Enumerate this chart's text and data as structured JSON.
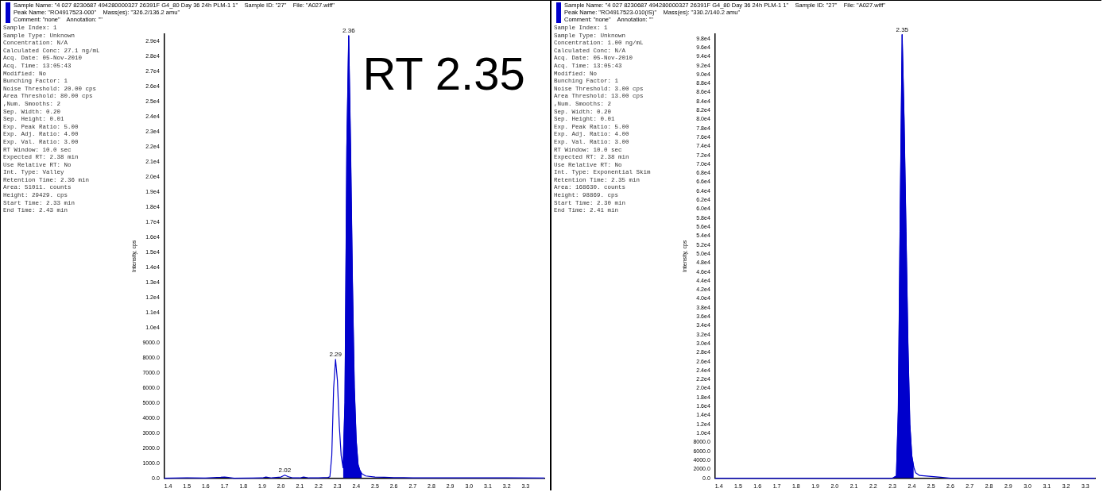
{
  "chart_data": [
    {
      "type": "line",
      "title": "Sample Name: \"4 027 8230687 494280000327 26391F G4_80 Day 36 24h PLM-1 1\"    Sample ID: \"27\"    File: \"A027.wiff\"",
      "subtitle": "Peak Name: \"RO4917523-000\"    Mass(es): \"326.2/136.2 amu\"",
      "ylabel": "Intensity, cps",
      "annotations": [
        "Comment: \"none\"    Annotation: \"\"",
        "Sample Index: 1",
        "Sample Type: Unknown",
        "Concentration: N/A",
        "Calculated Conc: 27.1 ng/mL",
        "Acq. Date: 05-Nov-2010",
        "Acq. Time: 13:05:43",
        "Modified: No",
        "Bunching Factor: 1",
        "Noise Threshold: 20.00 cps",
        "Area Threshold: 80.00 cps",
        ",Num. Smooths: 2",
        "Sep. Width: 0.20",
        "Sep. Height: 0.01",
        "Exp. Peak Ratio: 5.00",
        "Exp. Adj. Ratio: 4.00",
        "Exp. Val. Ratio: 3.00",
        "RT Window: 10.0 sec",
        "Expected RT: 2.38 min",
        "Use Relative RT: No",
        "Int. Type: Valley",
        "Retention Time: 2.36 min",
        "Area: 51011. counts",
        "Height: 29429. cps",
        "Start Time: 2.33 min",
        "End Time: 2.43 min",
        {
          "text": "2.36",
          "x": 2.36,
          "y": 29400
        },
        {
          "text": "2.29",
          "x": 2.29,
          "y": 7900
        },
        {
          "text": "2.02",
          "x": 2.02,
          "y": 200
        },
        {
          "text": "RT 2.35",
          "x": 2.35
        }
      ],
      "series": [
        {
          "type": "line",
          "color": "#0000cc",
          "x": [
            1.38,
            1.5,
            1.6,
            1.68,
            1.7,
            1.72,
            1.75,
            1.85,
            1.9,
            1.92,
            1.95,
            2.0,
            2.02,
            2.04,
            2.06,
            2.1,
            2.12,
            2.15,
            2.2,
            2.25,
            2.26,
            2.27,
            2.28,
            2.29,
            2.3,
            2.31,
            2.32,
            2.33,
            2.34,
            2.35,
            2.36,
            2.37,
            2.38,
            2.39,
            2.4,
            2.41,
            2.42,
            2.43,
            2.45,
            2.5,
            2.55,
            2.6,
            2.7,
            2.8,
            3.0,
            3.2,
            3.4
          ],
          "values": [
            0,
            20,
            10,
            60,
            80,
            50,
            0,
            10,
            20,
            80,
            20,
            80,
            200,
            100,
            30,
            20,
            80,
            20,
            20,
            50,
            100,
            1500,
            6000,
            7900,
            6500,
            3500,
            1500,
            700,
            5000,
            22000,
            29400,
            22000,
            13000,
            6000,
            2500,
            900,
            500,
            300,
            150,
            80,
            60,
            40,
            30,
            20,
            20,
            20,
            10
          ]
        },
        {
          "type": "area",
          "color": "#0000cc",
          "x": [
            2.33,
            2.34,
            2.35,
            2.36,
            2.37,
            2.38,
            2.39,
            2.4,
            2.41,
            2.42,
            2.43
          ],
          "values": [
            700,
            5000,
            22000,
            29400,
            22000,
            13000,
            6000,
            2500,
            900,
            500,
            300
          ]
        }
      ],
      "xlim": [
        1.38,
        3.4
      ],
      "xticks": [
        {
          "value": 1.4,
          "label": "1.4"
        },
        {
          "value": 1.5,
          "label": "1.5"
        },
        {
          "value": 1.6,
          "label": "1.6"
        },
        {
          "value": 1.7,
          "label": "1.7"
        },
        {
          "value": 1.8,
          "label": "1.8"
        },
        {
          "value": 1.9,
          "label": "1.9"
        },
        {
          "value": 2,
          "label": "2.0"
        },
        {
          "value": 2.1,
          "label": "2.1"
        },
        {
          "value": 2.2,
          "label": "2.2"
        },
        {
          "value": 2.3,
          "label": "2.3"
        },
        {
          "value": 2.4,
          "label": "2.4"
        },
        {
          "value": 2.5,
          "label": "2.5"
        },
        {
          "value": 2.6,
          "label": "2.6"
        },
        {
          "value": 2.7,
          "label": "2.7"
        },
        {
          "value": 2.8,
          "label": "2.8"
        },
        {
          "value": 2.9,
          "label": "2.9"
        },
        {
          "value": 3,
          "label": "3.0"
        },
        {
          "value": 3.1,
          "label": "3.1"
        },
        {
          "value": 3.2,
          "label": "3.2"
        },
        {
          "value": 3.3,
          "label": "3.3"
        }
      ],
      "ylim": [
        0,
        29500
      ],
      "yticks": [
        {
          "value": 0,
          "label": "0.0"
        },
        {
          "value": 1000,
          "label": "1000.0"
        },
        {
          "value": 2000,
          "label": "2000.0"
        },
        {
          "value": 3000,
          "label": "3000.0"
        },
        {
          "value": 4000,
          "label": "4000.0"
        },
        {
          "value": 5000,
          "label": "5000.0"
        },
        {
          "value": 6000,
          "label": "6000.0"
        },
        {
          "value": 7000,
          "label": "7000.0"
        },
        {
          "value": 8000,
          "label": "8000.0"
        },
        {
          "value": 9000,
          "label": "9000.0"
        },
        {
          "value": 10000,
          "label": "1.0e4"
        },
        {
          "value": 11000,
          "label": "1.1e4"
        },
        {
          "value": 12000,
          "label": "1.2e4"
        },
        {
          "value": 13000,
          "label": "1.3e4"
        },
        {
          "value": 14000,
          "label": "1.4e4"
        },
        {
          "value": 15000,
          "label": "1.5e4"
        },
        {
          "value": 16000,
          "label": "1.6e4"
        },
        {
          "value": 17000,
          "label": "1.7e4"
        },
        {
          "value": 18000,
          "label": "1.8e4"
        },
        {
          "value": 19000,
          "label": "1.9e4"
        },
        {
          "value": 20000,
          "label": "2.0e4"
        },
        {
          "value": 21000,
          "label": "2.1e4"
        },
        {
          "value": 22000,
          "label": "2.2e4"
        },
        {
          "value": 23000,
          "label": "2.3e4"
        },
        {
          "value": 24000,
          "label": "2.4e4"
        },
        {
          "value": 25000,
          "label": "2.5e4"
        },
        {
          "value": 26000,
          "label": "2.6e4"
        },
        {
          "value": 27000,
          "label": "2.7e4"
        },
        {
          "value": 28000,
          "label": "2.8e4"
        },
        {
          "value": 29000,
          "label": "2.9e4"
        }
      ],
      "grid": false,
      "legend": false,
      "marker": "none"
    },
    {
      "type": "line",
      "title": "Sample Name: \"4 027 8230687 494280000327 26391F G4_80 Day 36 24h PLM-1 1\"    Sample ID: \"27\"    File: \"A027.wiff\"",
      "subtitle": "Peak Name: \"RO4917523-010(IS)\"    Mass(es): \"330.2/140.2 amu\"",
      "ylabel": "Intensity, cps",
      "annotations": [
        "Comment: \"none\"    Annotation: \"\"",
        "Sample Index: 1",
        "Sample Type: Unknown",
        "Concentration: 1.00 ng/mL",
        "Calculated Conc: N/A",
        "Acq. Date: 05-Nov-2010",
        "Acq. Time: 13:05:43",
        "Modified: No",
        "Bunching Factor: 1",
        "Noise Threshold: 3.00 cps",
        "Area Threshold: 13.00 cps",
        ",Num. Smooths: 2",
        "Sep. Width: 0.20",
        "Sep. Height: 0.01",
        "Exp. Peak Ratio: 5.00",
        "Exp. Adj. Ratio: 4.00",
        "Exp. Val. Ratio: 3.00",
        "RT Window: 10.0 sec",
        "Expected RT: 2.38 min",
        "Use Relative RT: No",
        "Int. Type: Exponential Skim",
        "Retention Time: 2.35 min",
        "Area: 168630. counts",
        "Height: 98869. cps",
        "Start Time: 2.30 min",
        "End Time: 2.41 min",
        {
          "text": "2.35",
          "x": 2.35,
          "y": 98900
        }
      ],
      "series": [
        {
          "type": "line",
          "color": "#0000cc",
          "x": [
            1.38,
            1.6,
            1.8,
            2.0,
            2.2,
            2.3,
            2.32,
            2.33,
            2.34,
            2.35,
            2.36,
            2.37,
            2.38,
            2.39,
            2.4,
            2.41,
            2.42,
            2.44,
            2.5,
            2.55,
            2.6,
            3.0,
            3.35
          ],
          "values": [
            0,
            0,
            0,
            0,
            0,
            0,
            500,
            15000,
            60000,
            98900,
            80000,
            55000,
            30000,
            12000,
            5000,
            2500,
            1200,
            600,
            400,
            200,
            0,
            0,
            0
          ]
        },
        {
          "type": "area",
          "color": "#0000cc",
          "x": [
            2.3,
            2.32,
            2.33,
            2.34,
            2.35,
            2.36,
            2.37,
            2.38,
            2.39,
            2.4,
            2.41
          ],
          "values": [
            0,
            500,
            15000,
            60000,
            98900,
            80000,
            55000,
            30000,
            12000,
            5000,
            2500
          ]
        }
      ],
      "xlim": [
        1.38,
        3.35
      ],
      "xticks": [
        {
          "value": 1.4,
          "label": "1.4"
        },
        {
          "value": 1.5,
          "label": "1.5"
        },
        {
          "value": 1.6,
          "label": "1.6"
        },
        {
          "value": 1.7,
          "label": "1.7"
        },
        {
          "value": 1.8,
          "label": "1.8"
        },
        {
          "value": 1.9,
          "label": "1.9"
        },
        {
          "value": 2,
          "label": "2.0"
        },
        {
          "value": 2.1,
          "label": "2.1"
        },
        {
          "value": 2.2,
          "label": "2.2"
        },
        {
          "value": 2.3,
          "label": "2.3"
        },
        {
          "value": 2.4,
          "label": "2.4"
        },
        {
          "value": 2.5,
          "label": "2.5"
        },
        {
          "value": 2.6,
          "label": "2.6"
        },
        {
          "value": 2.7,
          "label": "2.7"
        },
        {
          "value": 2.8,
          "label": "2.8"
        },
        {
          "value": 2.9,
          "label": "2.9"
        },
        {
          "value": 3,
          "label": "3.0"
        },
        {
          "value": 3.1,
          "label": "3.1"
        },
        {
          "value": 3.2,
          "label": "3.2"
        },
        {
          "value": 3.3,
          "label": "3.3"
        }
      ],
      "ylim": [
        0,
        99000
      ],
      "yticks": [
        {
          "value": 0,
          "label": "0.0"
        },
        {
          "value": 2000,
          "label": "2000.0"
        },
        {
          "value": 4000,
          "label": "4000.0"
        },
        {
          "value": 6000,
          "label": "6000.0"
        },
        {
          "value": 8000,
          "label": "8000.0"
        },
        {
          "value": 10000,
          "label": "1.0e4"
        },
        {
          "value": 12000,
          "label": "1.2e4"
        },
        {
          "value": 14000,
          "label": "1.4e4"
        },
        {
          "value": 16000,
          "label": "1.6e4"
        },
        {
          "value": 18000,
          "label": "1.8e4"
        },
        {
          "value": 20000,
          "label": "2.0e4"
        },
        {
          "value": 22000,
          "label": "2.2e4"
        },
        {
          "value": 24000,
          "label": "2.4e4"
        },
        {
          "value": 26000,
          "label": "2.6e4"
        },
        {
          "value": 28000,
          "label": "2.8e4"
        },
        {
          "value": 30000,
          "label": "3.0e4"
        },
        {
          "value": 32000,
          "label": "3.2e4"
        },
        {
          "value": 34000,
          "label": "3.4e4"
        },
        {
          "value": 36000,
          "label": "3.6e4"
        },
        {
          "value": 38000,
          "label": "3.8e4"
        },
        {
          "value": 40000,
          "label": "4.0e4"
        },
        {
          "value": 42000,
          "label": "4.2e4"
        },
        {
          "value": 44000,
          "label": "4.4e4"
        },
        {
          "value": 46000,
          "label": "4.6e4"
        },
        {
          "value": 48000,
          "label": "4.8e4"
        },
        {
          "value": 50000,
          "label": "5.0e4"
        },
        {
          "value": 52000,
          "label": "5.2e4"
        },
        {
          "value": 54000,
          "label": "5.4e4"
        },
        {
          "value": 56000,
          "label": "5.6e4"
        },
        {
          "value": 58000,
          "label": "5.8e4"
        },
        {
          "value": 60000,
          "label": "6.0e4"
        },
        {
          "value": 62000,
          "label": "6.2e4"
        },
        {
          "value": 64000,
          "label": "6.4e4"
        },
        {
          "value": 66000,
          "label": "6.6e4"
        },
        {
          "value": 68000,
          "label": "6.8e4"
        },
        {
          "value": 70000,
          "label": "7.0e4"
        },
        {
          "value": 72000,
          "label": "7.2e4"
        },
        {
          "value": 74000,
          "label": "7.4e4"
        },
        {
          "value": 76000,
          "label": "7.6e4"
        },
        {
          "value": 78000,
          "label": "7.8e4"
        },
        {
          "value": 80000,
          "label": "8.0e4"
        },
        {
          "value": 82000,
          "label": "8.2e4"
        },
        {
          "value": 84000,
          "label": "8.4e4"
        },
        {
          "value": 86000,
          "label": "8.6e4"
        },
        {
          "value": 88000,
          "label": "8.8e4"
        },
        {
          "value": 90000,
          "label": "9.0e4"
        },
        {
          "value": 92000,
          "label": "9.2e4"
        },
        {
          "value": 94000,
          "label": "9.4e4"
        },
        {
          "value": 96000,
          "label": "9.6e4"
        },
        {
          "value": 98000,
          "label": "9.8e4"
        }
      ],
      "grid": false,
      "legend": false,
      "marker": "none"
    }
  ]
}
